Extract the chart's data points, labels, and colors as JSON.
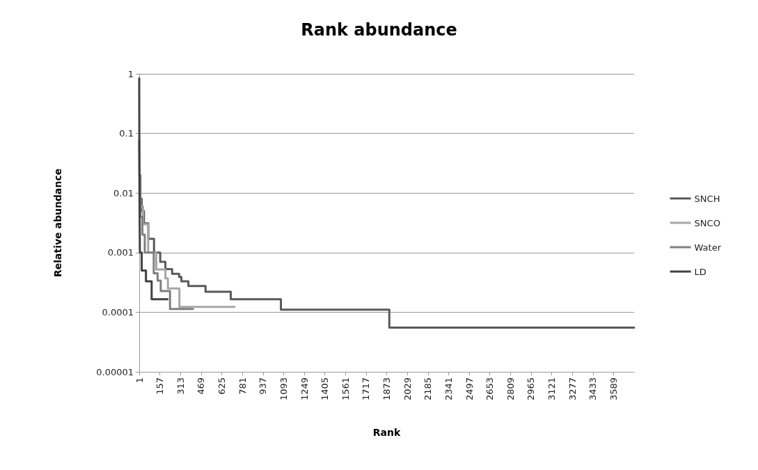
{
  "chart_data": {
    "type": "step",
    "title": "Rank abundance",
    "xlabel": "Rank",
    "ylabel": "Relative abundance",
    "xlim": [
      1,
      3745
    ],
    "xticks": [
      1,
      157,
      313,
      469,
      625,
      781,
      937,
      1093,
      1249,
      1405,
      1561,
      1717,
      1873,
      2029,
      2185,
      2341,
      2497,
      2653,
      2809,
      2965,
      3121,
      3277,
      3433,
      3589
    ],
    "ylim": [
      1e-05,
      1
    ],
    "yticks": [
      {
        "value": 1e-05,
        "label": "0.00001"
      },
      0.0001,
      0.001,
      0.01,
      0.1,
      1
    ],
    "log": "y",
    "grid": "y",
    "legend": "right",
    "series": [
      {
        "name": "SNCH",
        "color": "#595959",
        "x": [
          1,
          3,
          8,
          20,
          37,
          70,
          113,
          160,
          199,
          250,
          303,
          320,
          373,
          503,
          694,
          1073,
          1893,
          3745
        ],
        "values": [
          0.076,
          0.02,
          0.008,
          0.005,
          0.0031,
          0.0017,
          0.001,
          0.0007,
          0.00053,
          0.00044,
          0.00039,
          0.00033,
          0.000275,
          0.00022,
          0.000165,
          0.00011,
          5.5e-05,
          5.5e-05
        ]
      },
      {
        "name": "SNCO",
        "color": "#a6a6a6",
        "x": [
          1,
          10,
          30,
          69,
          130,
          199,
          218,
          305,
          722
        ],
        "values": [
          0.015,
          0.006,
          0.003,
          0.001,
          0.00052,
          0.00037,
          0.00025,
          0.000123,
          0.000123
        ]
      },
      {
        "name": "Water",
        "color": "#7f7f7f",
        "x": [
          1,
          10,
          25,
          43,
          111,
          140,
          164,
          234,
          408
        ],
        "values": [
          0.02,
          0.004,
          0.002,
          0.001,
          0.00045,
          0.00034,
          0.000226,
          0.000113,
          0.000113
        ]
      },
      {
        "name": "LD",
        "color": "#404040",
        "x": [
          1,
          2,
          3,
          6,
          20,
          52,
          95,
          215
        ],
        "values": [
          0.84,
          0.05,
          0.01,
          0.001,
          0.0005,
          0.00033,
          0.000165,
          0.000165
        ]
      }
    ]
  }
}
